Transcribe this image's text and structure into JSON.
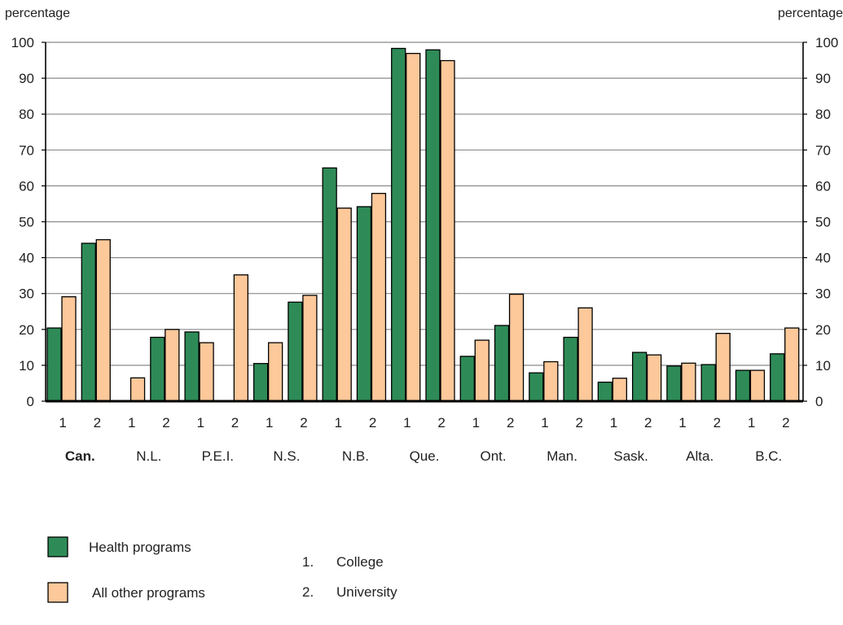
{
  "chart_data": {
    "type": "bar",
    "y_unit_left": "percentage",
    "y_unit_right": "percentage",
    "ylim": [
      0,
      100
    ],
    "yticks": [
      0,
      10,
      20,
      30,
      40,
      50,
      60,
      70,
      80,
      90,
      100
    ],
    "grid": true,
    "regions": [
      "Can.",
      "N.L.",
      "P.E.I.",
      "N.S.",
      "N.B.",
      "Que.",
      "Ont.",
      "Man.",
      "Sask.",
      "Alta.",
      "B.C."
    ],
    "bold_regions": [
      "Can."
    ],
    "sub_categories": [
      "1",
      "2"
    ],
    "series": [
      {
        "name": "Health programs",
        "color": "#2e8b57",
        "values": [
          [
            20.4,
            44
          ],
          [
            null,
            17.8
          ],
          [
            19.3,
            null
          ],
          [
            10.5,
            27.6
          ],
          [
            65,
            54.2
          ],
          [
            98.3,
            97.9
          ],
          [
            12.5,
            21.1
          ],
          [
            7.9,
            17.8
          ],
          [
            5.3,
            13.6
          ],
          [
            9.8,
            10.2
          ],
          [
            8.6,
            13.2
          ]
        ]
      },
      {
        "name": "All other programs",
        "color": "#fdc89a",
        "values": [
          [
            29.1,
            45
          ],
          [
            6.5,
            20
          ],
          [
            16.3,
            35.2
          ],
          [
            16.3,
            29.5
          ],
          [
            53.8,
            57.9
          ],
          [
            96.9,
            94.9
          ],
          [
            17,
            29.8
          ],
          [
            11,
            26
          ],
          [
            6.4,
            12.9
          ],
          [
            10.6,
            18.9
          ],
          [
            8.6,
            20.4
          ]
        ]
      }
    ],
    "footnotes": [
      "1.",
      "College",
      "2.",
      "University"
    ]
  }
}
